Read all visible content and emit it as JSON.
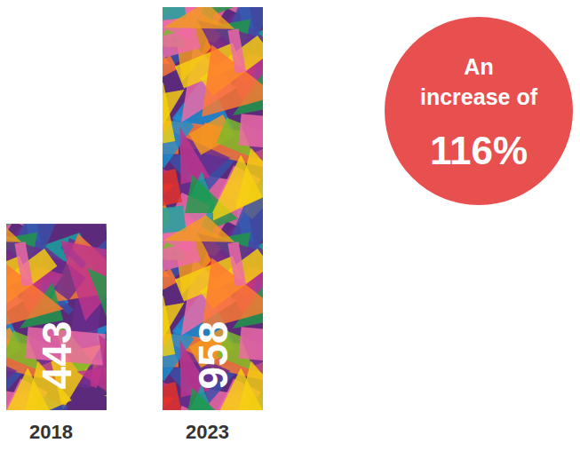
{
  "chart_data": {
    "type": "bar",
    "categories": [
      "2018",
      "2023"
    ],
    "values": [
      443,
      958
    ],
    "ylim": [
      0,
      958
    ],
    "data_labels": true,
    "tick_labels": "x",
    "annotation": {
      "lines": [
        "An",
        "increase of",
        "116%"
      ]
    }
  }
}
